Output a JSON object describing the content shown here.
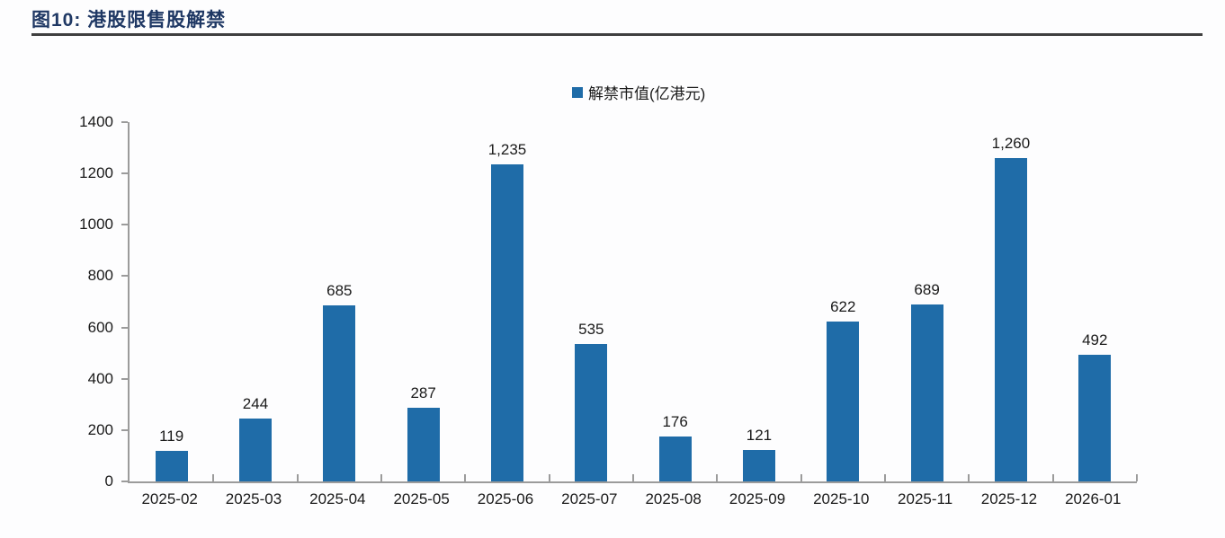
{
  "figure": {
    "title": "图10: 港股限售股解禁"
  },
  "legend": {
    "label": "解禁市值(亿港元)",
    "marker_color": "#1F6CA8"
  },
  "chart_data": {
    "type": "bar",
    "title": "图10: 港股限售股解禁",
    "series_name": "解禁市值(亿港元)",
    "categories": [
      "2025-02",
      "2025-03",
      "2025-04",
      "2025-05",
      "2025-06",
      "2025-07",
      "2025-08",
      "2025-09",
      "2025-10",
      "2025-11",
      "2025-12",
      "2026-01"
    ],
    "values": [
      119,
      244,
      685,
      287,
      1235,
      535,
      176,
      121,
      622,
      689,
      1260,
      492
    ],
    "value_labels": [
      "119",
      "244",
      "685",
      "287",
      "1,235",
      "535",
      "176",
      "121",
      "622",
      "689",
      "1,260",
      "492"
    ],
    "xlabel": "",
    "ylabel": "",
    "ylim": [
      0,
      1400
    ],
    "yticks": [
      0,
      200,
      400,
      600,
      800,
      1000,
      1200,
      1400
    ],
    "grid": false,
    "legend_position": "top-center",
    "bar_color": "#1F6CA8"
  },
  "colors": {
    "bar": "#1F6CA8",
    "title": "#1F3864",
    "rule": "#3F3F3F",
    "axis": "#9B9B9B",
    "text": "#1A1A1A"
  }
}
